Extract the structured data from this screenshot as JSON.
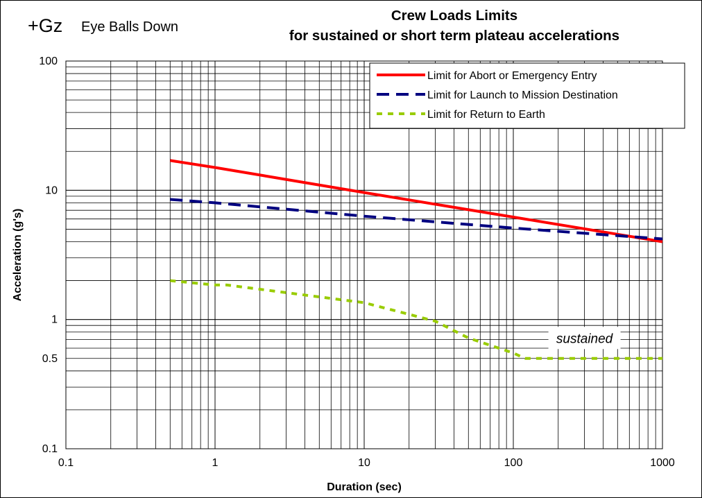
{
  "header": {
    "gz_label": "+Gz",
    "orientation_label": "Eye Balls  Down"
  },
  "chart_data": {
    "type": "line",
    "title": "Crew Loads Limits",
    "subtitle": "for sustained or short term plateau accelerations",
    "xlabel": "Duration (sec)",
    "ylabel": "Acceleration (g's)",
    "x_scale": "log",
    "y_scale": "log",
    "xlim": [
      0.1,
      1000
    ],
    "ylim": [
      0.1,
      100
    ],
    "x_ticks": [
      {
        "value": 0.1,
        "label": "0.1"
      },
      {
        "value": 1,
        "label": "1"
      },
      {
        "value": 10,
        "label": "10"
      },
      {
        "value": 100,
        "label": "100"
      },
      {
        "value": 1000,
        "label": "1000"
      }
    ],
    "y_ticks": [
      {
        "value": 0.1,
        "label": "0.1"
      },
      {
        "value": 0.5,
        "label": "0.5"
      },
      {
        "value": 1,
        "label": "1"
      },
      {
        "value": 10,
        "label": "10"
      },
      {
        "value": 100,
        "label": "100"
      }
    ],
    "grid": true,
    "legend_position": "top-right",
    "series": [
      {
        "name": "Limit for Abort or Emergency Entry",
        "color": "#ff0000",
        "dash": "solid",
        "x": [
          0.5,
          1,
          10,
          100,
          1000
        ],
        "y": [
          17,
          15,
          9.6,
          6.2,
          4
        ]
      },
      {
        "name": "Limit for Launch to Mission Destination",
        "color": "#000080",
        "dash": "dashed",
        "x": [
          0.5,
          1,
          10,
          100,
          1000
        ],
        "y": [
          8.5,
          8,
          6.3,
          5.1,
          4.2
        ]
      },
      {
        "name": "Limit for Return to Earth",
        "color": "#99cc00",
        "dash": "dotted",
        "x": [
          0.5,
          1,
          1.2,
          10,
          30,
          50,
          100,
          120,
          1000
        ],
        "y": [
          2,
          1.85,
          1.85,
          1.35,
          0.97,
          0.72,
          0.55,
          0.5,
          0.5
        ]
      }
    ],
    "annotations": [
      {
        "text": "sustained",
        "x": 300,
        "y": 0.72
      }
    ]
  }
}
